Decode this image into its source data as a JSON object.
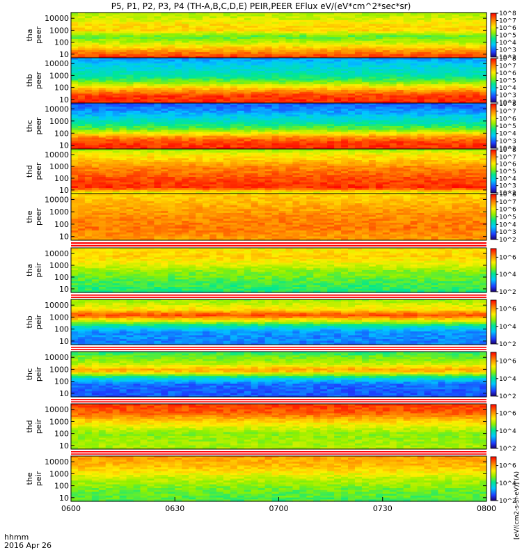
{
  "chart_data": {
    "type": "heatmap",
    "title": "P5, P1, P2, P3, P4 (TH-A,B,C,D,E) PEIR,PEER EFlux eV/(eV*cm^2*sec*sr)",
    "colorbar_label": "[eV/(cm2-s-sr-eV)] (A)",
    "xlabel_line1": "hhmm",
    "xlabel_line2": "2016 Apr 26",
    "x_ticks": [
      "0600",
      "0630",
      "0700",
      "0730",
      "0800"
    ],
    "xlim": [
      "06:00",
      "08:00"
    ],
    "y_scale": "log",
    "y_ticks": [
      "10",
      "100",
      "1000",
      "10000"
    ],
    "colorscale": "rainbow (blue to red)",
    "panels": [
      {
        "probe": "tha",
        "species": "peer",
        "ylim": [
          5,
          30000
        ],
        "colorbar_ticks": [
          "10^2",
          "10^3",
          "10^4",
          "10^5",
          "10^6",
          "10^7",
          "10^8"
        ],
        "colorbar_range": [
          100,
          100000000
        ],
        "bands": [
          {
            "e": 5,
            "l": 0.95
          },
          {
            "e": 30,
            "l": 0.75
          },
          {
            "e": 80,
            "l": 0.62
          },
          {
            "e": 300,
            "l": 0.5
          },
          {
            "e": 1000,
            "l": 0.72
          },
          {
            "e": 3000,
            "l": 0.7
          },
          {
            "e": 10000,
            "l": 0.62
          },
          {
            "e": 30000,
            "l": 0.58
          }
        ]
      },
      {
        "probe": "thb",
        "species": "peer",
        "ylim": [
          5,
          30000
        ],
        "colorbar_ticks": [
          "10^2",
          "10^3",
          "10^4",
          "10^5",
          "10^6",
          "10^7",
          "10^8"
        ],
        "colorbar_range": [
          100,
          100000000
        ],
        "bands": [
          {
            "e": 5,
            "l": 0.95
          },
          {
            "e": 20,
            "l": 0.93
          },
          {
            "e": 60,
            "l": 0.8
          },
          {
            "e": 200,
            "l": 0.58
          },
          {
            "e": 700,
            "l": 0.42
          },
          {
            "e": 2000,
            "l": 0.36
          },
          {
            "e": 8000,
            "l": 0.3
          },
          {
            "e": 30000,
            "l": 0.22
          }
        ]
      },
      {
        "probe": "thc",
        "species": "peer",
        "ylim": [
          5,
          30000
        ],
        "colorbar_ticks": [
          "10^2",
          "10^3",
          "10^4",
          "10^5",
          "10^6",
          "10^7",
          "10^8"
        ],
        "colorbar_range": [
          100,
          100000000
        ],
        "bands": [
          {
            "e": 5,
            "l": 0.95
          },
          {
            "e": 20,
            "l": 0.92
          },
          {
            "e": 60,
            "l": 0.78
          },
          {
            "e": 200,
            "l": 0.52
          },
          {
            "e": 800,
            "l": 0.38
          },
          {
            "e": 3000,
            "l": 0.28
          },
          {
            "e": 10000,
            "l": 0.2
          },
          {
            "e": 30000,
            "l": 0.15
          }
        ]
      },
      {
        "probe": "thd",
        "species": "peer",
        "ylim": [
          5,
          30000
        ],
        "colorbar_ticks": [
          "10^2",
          "10^3",
          "10^4",
          "10^5",
          "10^6",
          "10^7",
          "10^8"
        ],
        "colorbar_range": [
          100,
          100000000
        ],
        "bands": [
          {
            "e": 5,
            "l": 0.6
          },
          {
            "e": 15,
            "l": 0.95
          },
          {
            "e": 100,
            "l": 0.9
          },
          {
            "e": 1000,
            "l": 0.82
          },
          {
            "e": 4000,
            "l": 0.72
          },
          {
            "e": 10000,
            "l": 0.68
          },
          {
            "e": 30000,
            "l": 0.55
          }
        ]
      },
      {
        "probe": "the",
        "species": "peer",
        "ylim": [
          5,
          30000
        ],
        "colorbar_ticks": [
          "10^2",
          "10^3",
          "10^4",
          "10^5",
          "10^6",
          "10^7",
          "10^8"
        ],
        "colorbar_range": [
          100,
          100000000
        ],
        "bands": [
          {
            "e": 5,
            "l": 0.8
          },
          {
            "e": 50,
            "l": 0.85
          },
          {
            "e": 500,
            "l": 0.82
          },
          {
            "e": 3000,
            "l": 0.78
          },
          {
            "e": 10000,
            "l": 0.74
          },
          {
            "e": 30000,
            "l": 0.72
          }
        ]
      },
      {
        "probe": "tha",
        "species": "peir",
        "ylim": [
          5,
          30000
        ],
        "colorbar_ticks": [
          "10^2",
          "10^4",
          "10^6"
        ],
        "colorbar_range": [
          100,
          10000000
        ],
        "bands": [
          {
            "e": 5,
            "l": 0.44
          },
          {
            "e": 30,
            "l": 0.48
          },
          {
            "e": 300,
            "l": 0.55
          },
          {
            "e": 1500,
            "l": 0.66
          },
          {
            "e": 6000,
            "l": 0.72
          },
          {
            "e": 30000,
            "l": 0.68
          }
        ]
      },
      {
        "probe": "thb",
        "species": "peir",
        "ylim": [
          5,
          30000
        ],
        "colorbar_ticks": [
          "10^2",
          "10^4",
          "10^6"
        ],
        "colorbar_range": [
          100,
          10000000
        ],
        "bands": [
          {
            "e": 5,
            "l": 0.2
          },
          {
            "e": 60,
            "l": 0.22
          },
          {
            "e": 200,
            "l": 0.4
          },
          {
            "e": 700,
            "l": 0.75
          },
          {
            "e": 1500,
            "l": 0.92
          },
          {
            "e": 4000,
            "l": 0.7
          },
          {
            "e": 30000,
            "l": 0.55
          }
        ]
      },
      {
        "probe": "thc",
        "species": "peir",
        "ylim": [
          5,
          30000
        ],
        "colorbar_ticks": [
          "10^2",
          "10^4",
          "10^6"
        ],
        "colorbar_range": [
          100,
          10000000
        ],
        "bands": [
          {
            "e": 5,
            "l": 0.15
          },
          {
            "e": 60,
            "l": 0.18
          },
          {
            "e": 200,
            "l": 0.38
          },
          {
            "e": 800,
            "l": 0.8
          },
          {
            "e": 3000,
            "l": 0.6
          },
          {
            "e": 30000,
            "l": 0.45
          }
        ]
      },
      {
        "probe": "thd",
        "species": "peir",
        "ylim": [
          5,
          30000
        ],
        "colorbar_ticks": [
          "10^2",
          "10^4",
          "10^6"
        ],
        "colorbar_range": [
          100,
          10000000
        ],
        "bands": [
          {
            "e": 5,
            "l": 0.58
          },
          {
            "e": 100,
            "l": 0.55
          },
          {
            "e": 1000,
            "l": 0.72
          },
          {
            "e": 5000,
            "l": 0.88
          },
          {
            "e": 30000,
            "l": 0.93
          }
        ]
      },
      {
        "probe": "the",
        "species": "peir",
        "ylim": [
          5,
          30000
        ],
        "colorbar_ticks": [
          "10^2",
          "10^4",
          "10^6"
        ],
        "colorbar_range": [
          100,
          10000000
        ],
        "bands": [
          {
            "e": 5,
            "l": 0.48
          },
          {
            "e": 50,
            "l": 0.52
          },
          {
            "e": 500,
            "l": 0.62
          },
          {
            "e": 3000,
            "l": 0.74
          },
          {
            "e": 30000,
            "l": 0.8
          }
        ]
      }
    ]
  }
}
